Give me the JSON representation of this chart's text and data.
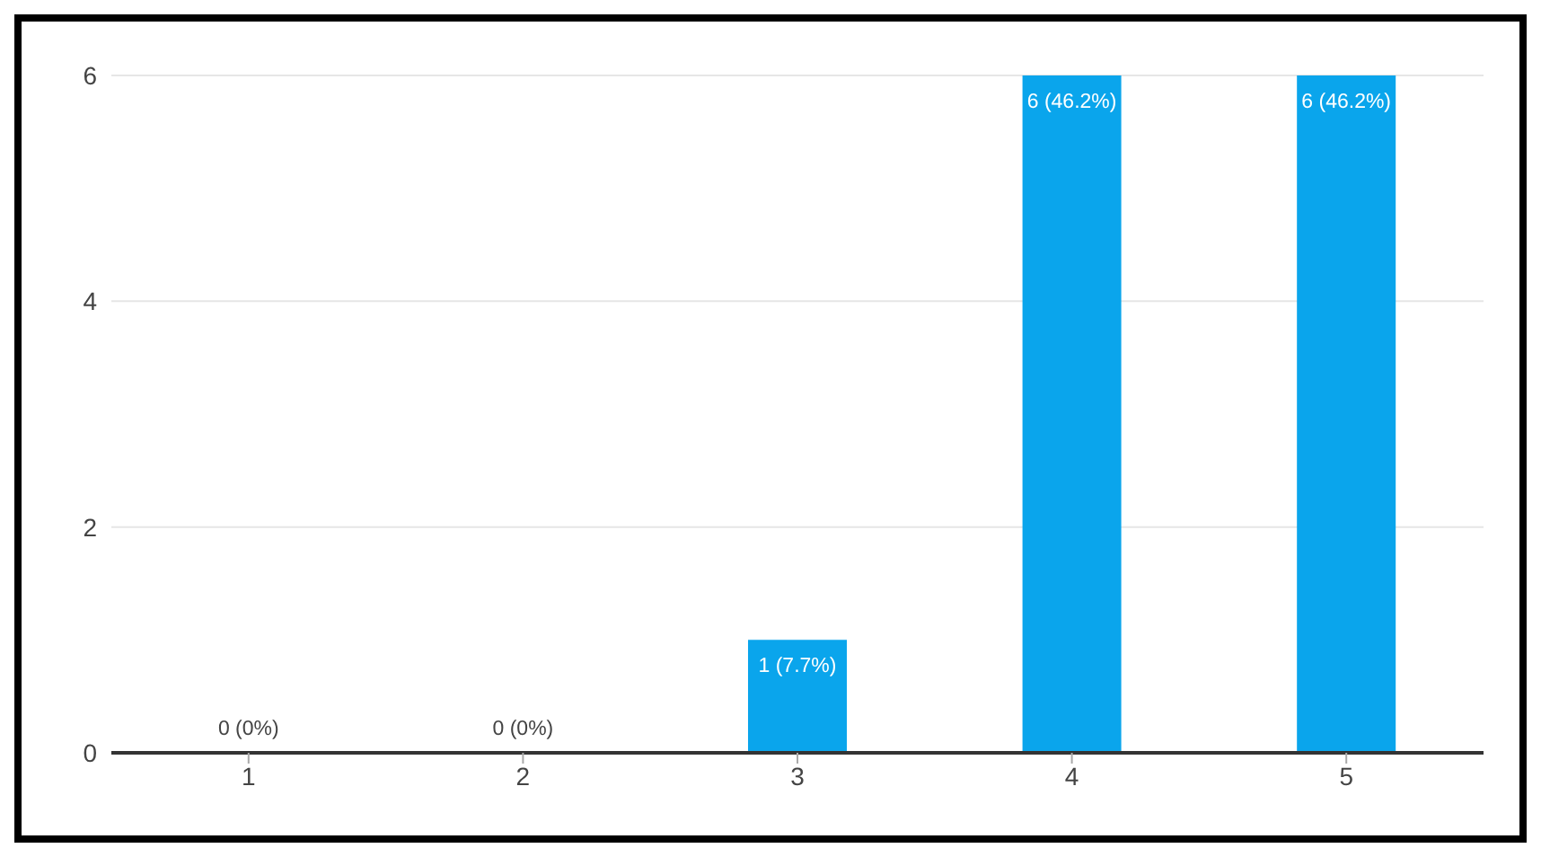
{
  "chart_data": {
    "type": "bar",
    "categories": [
      "1",
      "2",
      "3",
      "4",
      "5"
    ],
    "values": [
      0,
      0,
      1,
      6,
      6
    ],
    "color": "#0aa5ec",
    "value_labels": [
      "0 (0%)",
      "0 (0%)",
      "1 (7.7%)",
      "6 (46.2%)",
      "6 (46.2%)"
    ],
    "ylim": [
      0,
      6
    ],
    "yticks": [
      0,
      2,
      4,
      6
    ],
    "grid": "y"
  }
}
